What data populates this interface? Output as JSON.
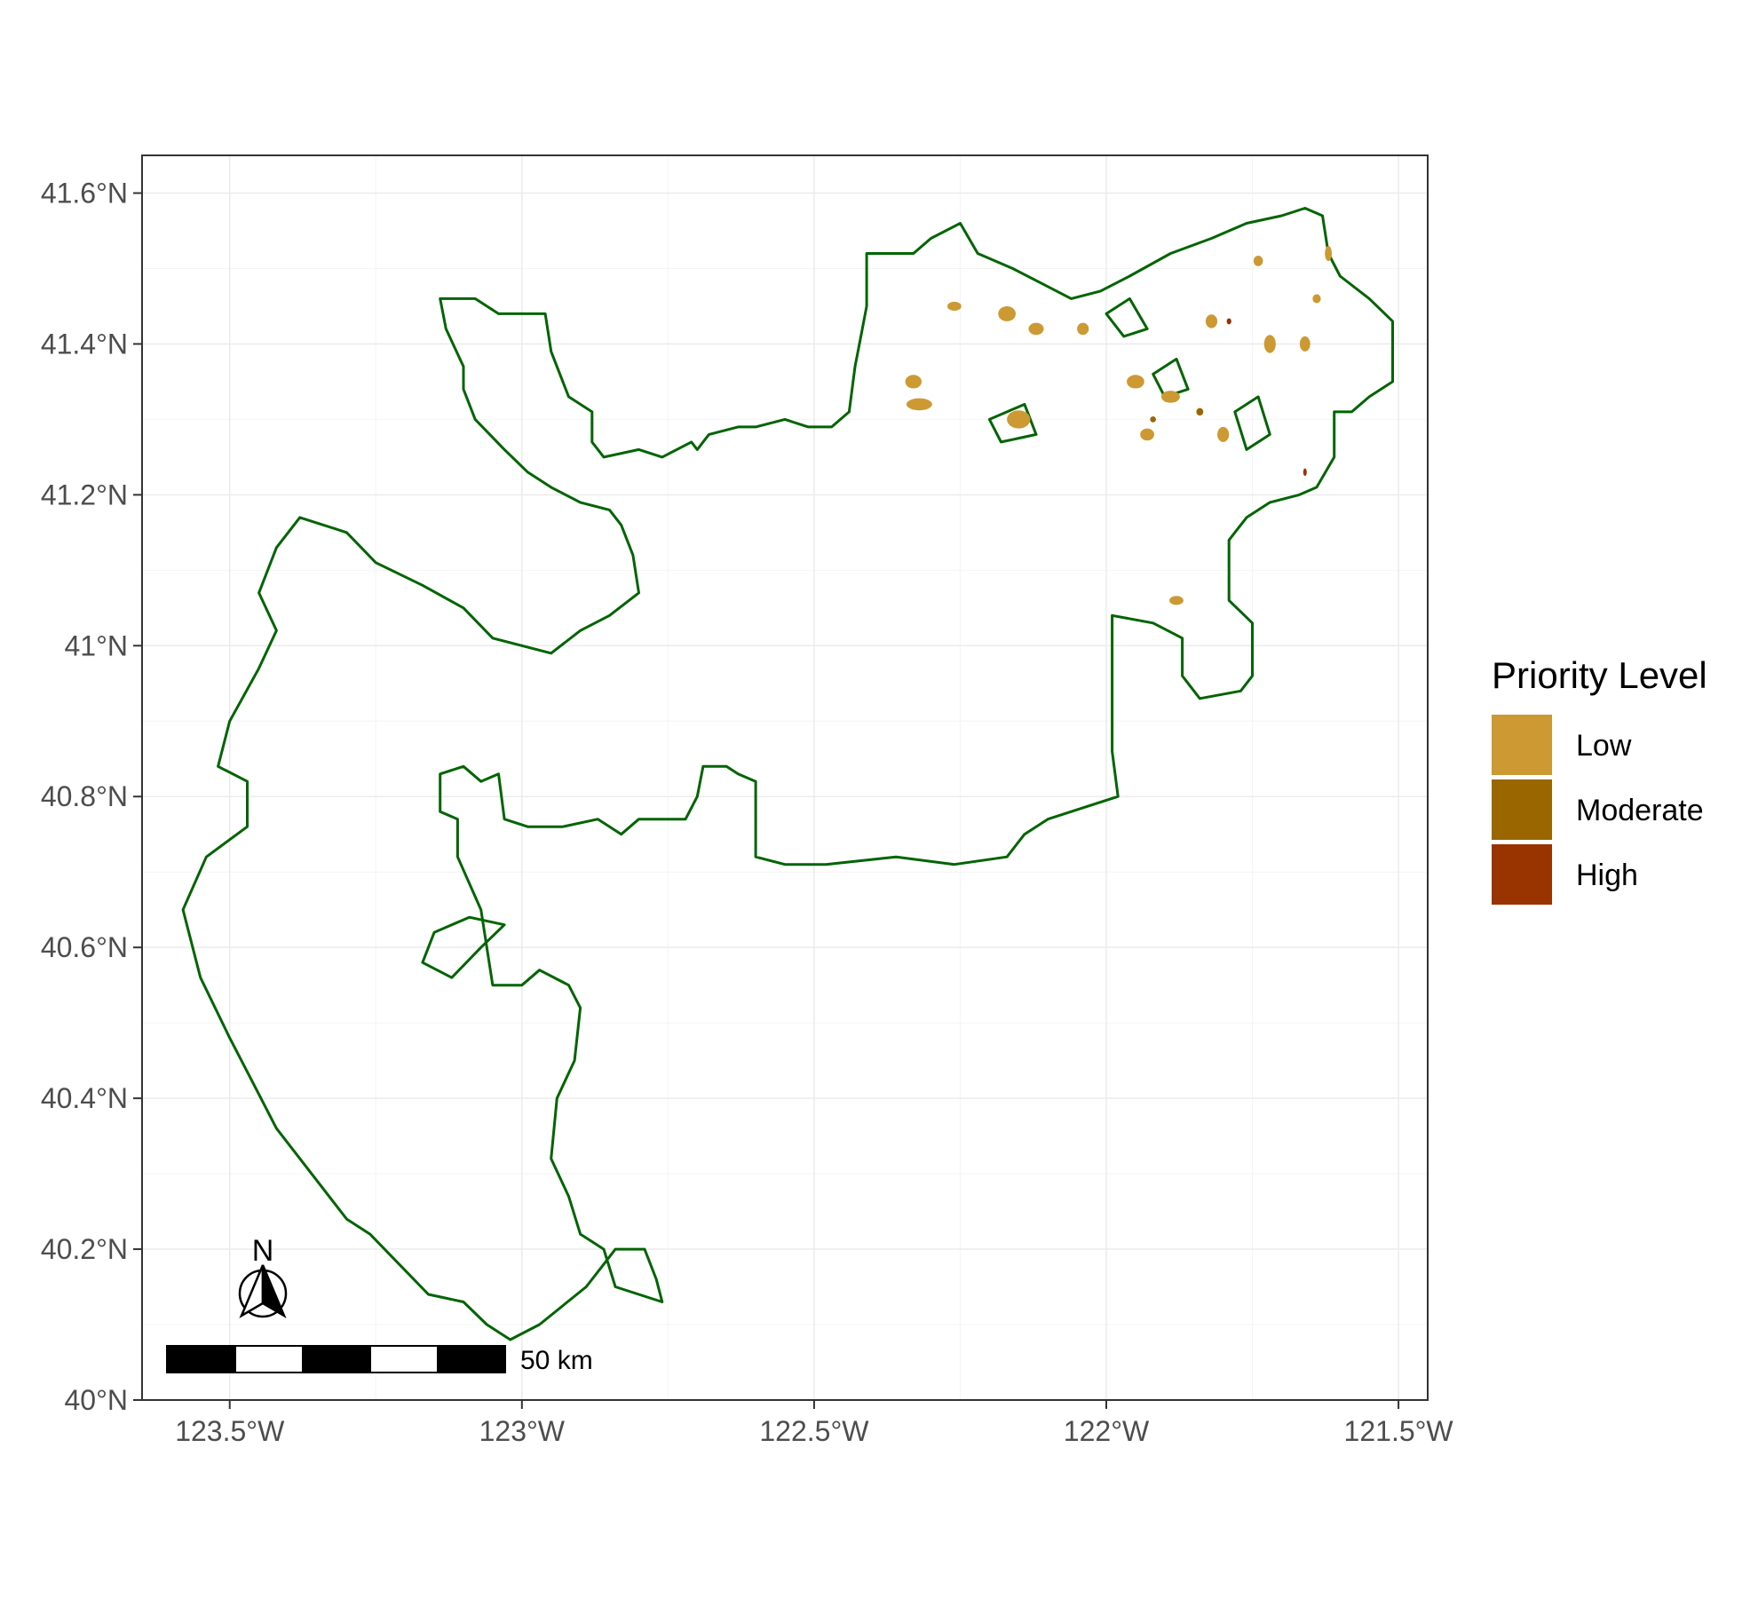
{
  "chart_data": {
    "type": "map",
    "xlim": [
      -123.65,
      -121.45
    ],
    "ylim": [
      40.0,
      41.65
    ],
    "x_ticks": [
      {
        "value": -123.5,
        "label": "123.5°W"
      },
      {
        "value": -123.0,
        "label": "123°W"
      },
      {
        "value": -122.5,
        "label": "122.5°W"
      },
      {
        "value": -122.0,
        "label": "122°W"
      },
      {
        "value": -121.5,
        "label": "121.5°W"
      }
    ],
    "y_ticks": [
      {
        "value": 40.0,
        "label": "40°N"
      },
      {
        "value": 40.2,
        "label": "40.2°N"
      },
      {
        "value": 40.4,
        "label": "40.4°N"
      },
      {
        "value": 40.6,
        "label": "40.6°N"
      },
      {
        "value": 40.8,
        "label": "40.8°N"
      },
      {
        "value": 41.0,
        "label": "41°N"
      },
      {
        "value": 41.2,
        "label": "41.2°N"
      },
      {
        "value": 41.4,
        "label": "41.4°N"
      },
      {
        "value": 41.6,
        "label": "41.6°N"
      }
    ],
    "grid": true,
    "legend": {
      "title": "Priority Level",
      "placement": "right",
      "entries": [
        {
          "label": "Low",
          "color": "#CC9933"
        },
        {
          "label": "Moderate",
          "color": "#996600"
        },
        {
          "label": "High",
          "color": "#993300"
        }
      ]
    },
    "boundary_color": "#006400",
    "scale_bar": {
      "label": "50 km"
    },
    "north_arrow": {
      "label": "N"
    },
    "boundary": [
      [
        -122.8,
        41.07
      ],
      [
        -122.81,
        41.12
      ],
      [
        -122.83,
        41.16
      ],
      [
        -122.85,
        41.18
      ],
      [
        -122.9,
        41.19
      ],
      [
        -122.95,
        41.21
      ],
      [
        -122.99,
        41.23
      ],
      [
        -123.03,
        41.26
      ],
      [
        -123.08,
        41.3
      ],
      [
        -123.1,
        41.34
      ],
      [
        -123.1,
        41.37
      ],
      [
        -123.13,
        41.42
      ],
      [
        -123.14,
        41.46
      ],
      [
        -123.08,
        41.46
      ],
      [
        -123.04,
        41.44
      ],
      [
        -122.96,
        41.44
      ],
      [
        -122.95,
        41.39
      ],
      [
        -122.92,
        41.33
      ],
      [
        -122.88,
        41.31
      ],
      [
        -122.88,
        41.27
      ],
      [
        -122.86,
        41.25
      ],
      [
        -122.8,
        41.26
      ],
      [
        -122.76,
        41.25
      ],
      [
        -122.71,
        41.27
      ],
      [
        -122.7,
        41.26
      ],
      [
        -122.68,
        41.28
      ],
      [
        -122.63,
        41.29
      ],
      [
        -122.6,
        41.29
      ],
      [
        -122.55,
        41.3
      ],
      [
        -122.51,
        41.29
      ],
      [
        -122.47,
        41.29
      ],
      [
        -122.44,
        41.31
      ],
      [
        -122.43,
        41.37
      ],
      [
        -122.42,
        41.41
      ],
      [
        -122.41,
        41.45
      ],
      [
        -122.41,
        41.52
      ],
      [
        -122.33,
        41.52
      ],
      [
        -122.3,
        41.54
      ],
      [
        -122.25,
        41.56
      ],
      [
        -122.22,
        41.52
      ],
      [
        -122.16,
        41.5
      ],
      [
        -122.11,
        41.48
      ],
      [
        -122.06,
        41.46
      ],
      [
        -122.01,
        41.47
      ],
      [
        -121.96,
        41.49
      ],
      [
        -121.89,
        41.52
      ],
      [
        -121.82,
        41.54
      ],
      [
        -121.76,
        41.56
      ],
      [
        -121.7,
        41.57
      ],
      [
        -121.66,
        41.58
      ],
      [
        -121.63,
        41.57
      ],
      [
        -121.62,
        41.52
      ],
      [
        -121.6,
        41.49
      ],
      [
        -121.55,
        41.46
      ],
      [
        -121.51,
        41.43
      ],
      [
        -121.51,
        41.35
      ],
      [
        -121.55,
        41.33
      ],
      [
        -121.58,
        41.31
      ],
      [
        -121.61,
        41.31
      ],
      [
        -121.61,
        41.25
      ],
      [
        -121.64,
        41.21
      ],
      [
        -121.67,
        41.2
      ],
      [
        -121.72,
        41.19
      ],
      [
        -121.76,
        41.17
      ],
      [
        -121.79,
        41.14
      ],
      [
        -121.79,
        41.06
      ],
      [
        -121.75,
        41.03
      ],
      [
        -121.75,
        40.96
      ],
      [
        -121.77,
        40.94
      ],
      [
        -121.84,
        40.93
      ],
      [
        -121.87,
        40.96
      ],
      [
        -121.87,
        41.01
      ],
      [
        -121.92,
        41.03
      ],
      [
        -121.99,
        41.04
      ],
      [
        -121.99,
        40.97
      ],
      [
        -121.99,
        40.86
      ],
      [
        -121.98,
        40.8
      ],
      [
        -122.02,
        40.79
      ],
      [
        -122.06,
        40.78
      ],
      [
        -122.1,
        40.77
      ],
      [
        -122.14,
        40.75
      ],
      [
        -122.17,
        40.72
      ],
      [
        -122.26,
        40.71
      ],
      [
        -122.36,
        40.72
      ],
      [
        -122.48,
        40.71
      ],
      [
        -122.55,
        40.71
      ],
      [
        -122.6,
        40.72
      ],
      [
        -122.6,
        40.77
      ],
      [
        -122.6,
        40.82
      ],
      [
        -122.63,
        40.83
      ],
      [
        -122.65,
        40.84
      ],
      [
        -122.69,
        40.84
      ],
      [
        -122.7,
        40.8
      ],
      [
        -122.72,
        40.77
      ],
      [
        -122.76,
        40.77
      ],
      [
        -122.8,
        40.77
      ],
      [
        -122.83,
        40.75
      ],
      [
        -122.87,
        40.77
      ],
      [
        -122.93,
        40.76
      ],
      [
        -122.99,
        40.76
      ],
      [
        -123.03,
        40.77
      ],
      [
        -123.04,
        40.83
      ],
      [
        -123.07,
        40.82
      ],
      [
        -123.1,
        40.84
      ],
      [
        -123.14,
        40.83
      ],
      [
        -123.14,
        40.78
      ],
      [
        -123.11,
        40.77
      ],
      [
        -123.11,
        40.72
      ],
      [
        -123.07,
        40.65
      ],
      [
        -123.06,
        40.6
      ],
      [
        -123.05,
        40.55
      ],
      [
        -123.0,
        40.55
      ],
      [
        -122.97,
        40.57
      ],
      [
        -122.92,
        40.55
      ],
      [
        -122.9,
        40.52
      ],
      [
        -122.91,
        40.45
      ],
      [
        -122.94,
        40.4
      ],
      [
        -122.95,
        40.32
      ],
      [
        -122.92,
        40.27
      ],
      [
        -122.9,
        40.22
      ],
      [
        -122.86,
        40.2
      ],
      [
        -122.84,
        40.15
      ],
      [
        -122.76,
        40.13
      ],
      [
        -122.77,
        40.16
      ],
      [
        -122.79,
        40.2
      ],
      [
        -122.84,
        40.2
      ],
      [
        -122.86,
        40.18
      ],
      [
        -122.89,
        40.15
      ],
      [
        -122.97,
        40.1
      ],
      [
        -123.02,
        40.08
      ],
      [
        -123.06,
        40.1
      ],
      [
        -123.1,
        40.13
      ],
      [
        -123.16,
        40.14
      ],
      [
        -123.21,
        40.18
      ],
      [
        -123.26,
        40.22
      ],
      [
        -123.3,
        40.24
      ],
      [
        -123.36,
        40.3
      ],
      [
        -123.42,
        40.36
      ],
      [
        -123.46,
        40.42
      ],
      [
        -123.5,
        40.48
      ],
      [
        -123.55,
        40.56
      ],
      [
        -123.58,
        40.65
      ],
      [
        -123.54,
        40.72
      ],
      [
        -123.47,
        40.76
      ],
      [
        -123.47,
        40.82
      ],
      [
        -123.52,
        40.84
      ],
      [
        -123.5,
        40.9
      ],
      [
        -123.45,
        40.97
      ],
      [
        -123.42,
        41.02
      ],
      [
        -123.45,
        41.07
      ],
      [
        -123.42,
        41.13
      ],
      [
        -123.38,
        41.17
      ],
      [
        -123.3,
        41.15
      ],
      [
        -123.25,
        41.11
      ],
      [
        -123.17,
        41.08
      ],
      [
        -123.1,
        41.05
      ],
      [
        -123.05,
        41.01
      ],
      [
        -123.0,
        41.0
      ],
      [
        -122.95,
        40.99
      ],
      [
        -122.9,
        41.02
      ],
      [
        -122.85,
        41.04
      ],
      [
        -122.8,
        41.07
      ]
    ],
    "inner_rings": [
      [
        [
          -123.17,
          40.58
        ],
        [
          -123.15,
          40.62
        ],
        [
          -123.09,
          40.64
        ],
        [
          -123.03,
          40.63
        ],
        [
          -123.07,
          40.6
        ],
        [
          -123.12,
          40.56
        ],
        [
          -123.17,
          40.58
        ]
      ],
      [
        [
          -121.92,
          41.36
        ],
        [
          -121.88,
          41.38
        ],
        [
          -121.86,
          41.34
        ],
        [
          -121.9,
          41.33
        ],
        [
          -121.92,
          41.36
        ]
      ],
      [
        [
          -122.0,
          41.44
        ],
        [
          -121.96,
          41.46
        ],
        [
          -121.93,
          41.42
        ],
        [
          -121.97,
          41.41
        ],
        [
          -122.0,
          41.44
        ]
      ],
      [
        [
          -121.78,
          41.31
        ],
        [
          -121.74,
          41.33
        ],
        [
          -121.72,
          41.28
        ],
        [
          -121.76,
          41.26
        ],
        [
          -121.78,
          41.31
        ]
      ],
      [
        [
          -122.2,
          41.3
        ],
        [
          -122.14,
          41.32
        ],
        [
          -122.12,
          41.28
        ],
        [
          -122.18,
          41.27
        ],
        [
          -122.2,
          41.3
        ]
      ]
    ],
    "patches": [
      {
        "level": "Low",
        "lon": -122.26,
        "lat": 41.45,
        "rx": 0.012,
        "ry": 0.006
      },
      {
        "level": "Low",
        "lon": -122.17,
        "lat": 41.44,
        "rx": 0.015,
        "ry": 0.01
      },
      {
        "level": "Low",
        "lon": -122.12,
        "lat": 41.42,
        "rx": 0.013,
        "ry": 0.008
      },
      {
        "level": "Low",
        "lon": -122.33,
        "lat": 41.35,
        "rx": 0.014,
        "ry": 0.009
      },
      {
        "level": "Low",
        "lon": -122.32,
        "lat": 41.32,
        "rx": 0.022,
        "ry": 0.008
      },
      {
        "level": "Low",
        "lon": -122.15,
        "lat": 41.3,
        "rx": 0.02,
        "ry": 0.012
      },
      {
        "level": "Low",
        "lon": -122.04,
        "lat": 41.42,
        "rx": 0.01,
        "ry": 0.008
      },
      {
        "level": "Low",
        "lon": -121.95,
        "lat": 41.35,
        "rx": 0.015,
        "ry": 0.009
      },
      {
        "level": "Low",
        "lon": -121.89,
        "lat": 41.33,
        "rx": 0.016,
        "ry": 0.008
      },
      {
        "level": "Low",
        "lon": -121.82,
        "lat": 41.43,
        "rx": 0.01,
        "ry": 0.009
      },
      {
        "level": "Low",
        "lon": -121.72,
        "lat": 41.4,
        "rx": 0.01,
        "ry": 0.012
      },
      {
        "level": "Low",
        "lon": -121.66,
        "lat": 41.4,
        "rx": 0.009,
        "ry": 0.01
      },
      {
        "level": "Low",
        "lon": -121.64,
        "lat": 41.46,
        "rx": 0.007,
        "ry": 0.006
      },
      {
        "level": "Low",
        "lon": -121.74,
        "lat": 41.51,
        "rx": 0.008,
        "ry": 0.007
      },
      {
        "level": "Low",
        "lon": -121.62,
        "lat": 41.52,
        "rx": 0.006,
        "ry": 0.01
      },
      {
        "level": "Low",
        "lon": -121.93,
        "lat": 41.28,
        "rx": 0.012,
        "ry": 0.008
      },
      {
        "level": "Low",
        "lon": -121.88,
        "lat": 41.06,
        "rx": 0.012,
        "ry": 0.006
      },
      {
        "level": "Low",
        "lon": -121.8,
        "lat": 41.28,
        "rx": 0.01,
        "ry": 0.01
      },
      {
        "level": "Moderate",
        "lon": -121.84,
        "lat": 41.31,
        "rx": 0.006,
        "ry": 0.005
      },
      {
        "level": "Moderate",
        "lon": -121.92,
        "lat": 41.3,
        "rx": 0.005,
        "ry": 0.004
      },
      {
        "level": "High",
        "lon": -121.79,
        "lat": 41.43,
        "rx": 0.004,
        "ry": 0.004
      },
      {
        "level": "High",
        "lon": -121.66,
        "lat": 41.23,
        "rx": 0.003,
        "ry": 0.005
      }
    ]
  }
}
